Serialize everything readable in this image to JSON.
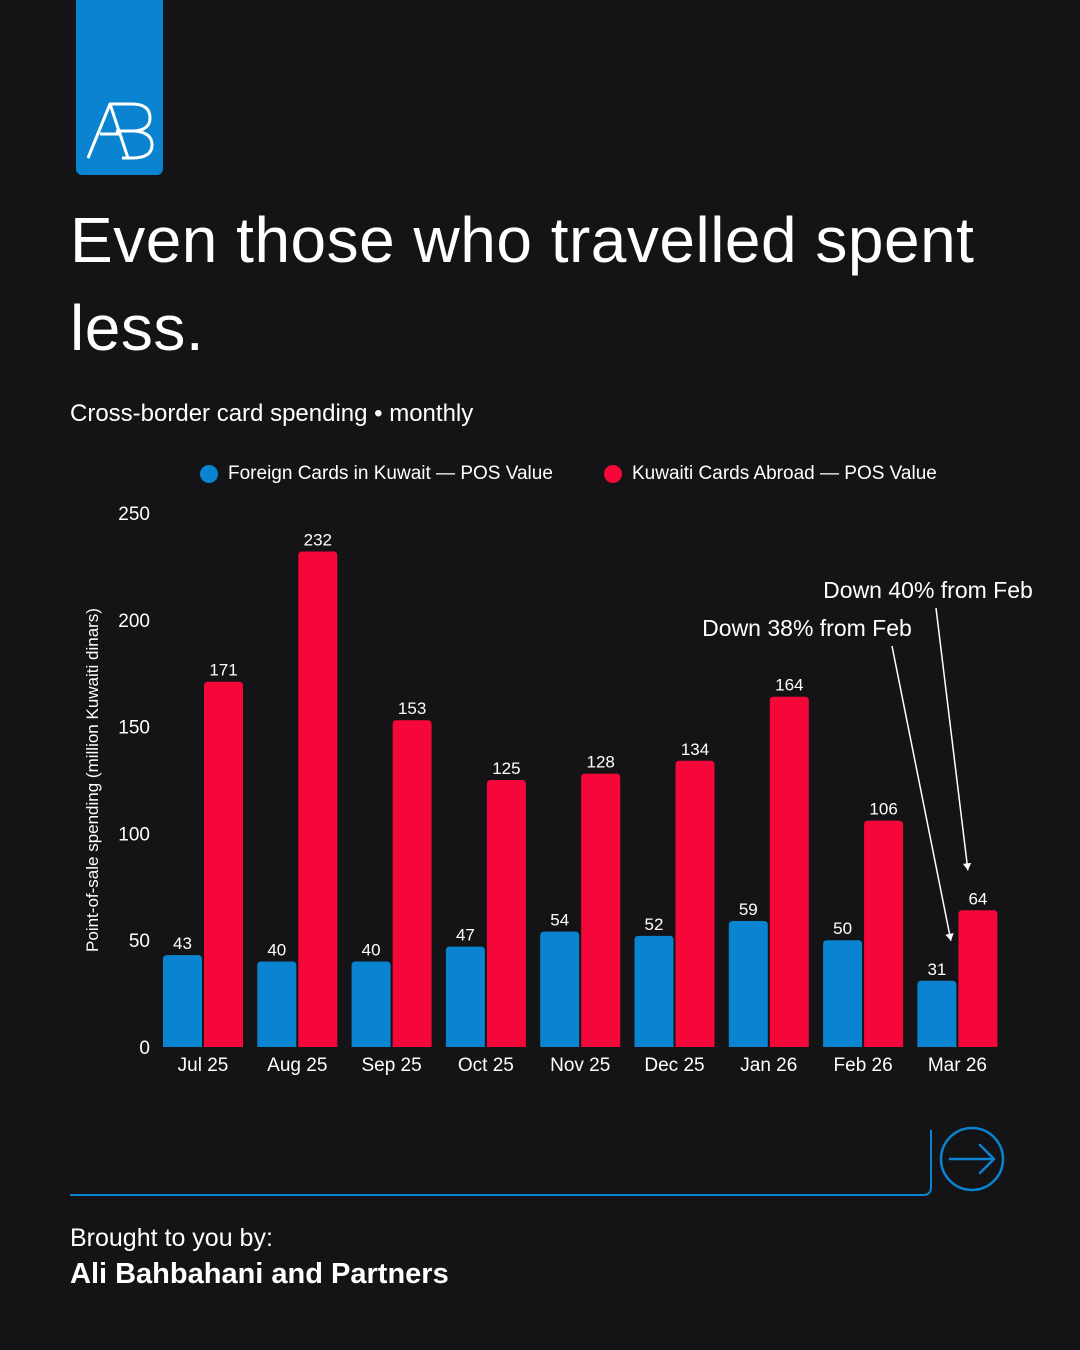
{
  "brand": {
    "logo_name": "ab-monogram-logo",
    "accent": "#0a84d0"
  },
  "headline": "Even those who travelled spent less.",
  "subtitle": "Cross-border card spending • monthly",
  "footer": {
    "label": "Brought to you by:",
    "name": "Ali Bahbahani and Partners",
    "next_icon": "arrow-right-circle-icon"
  },
  "chart_data": {
    "type": "bar",
    "categories": [
      "Jul 25",
      "Aug 25",
      "Sep 25",
      "Oct 25",
      "Nov 25",
      "Dec 25",
      "Jan 26",
      "Feb 26",
      "Mar 26"
    ],
    "series": [
      {
        "name": "Foreign Cards in Kuwait — POS Value",
        "color": "#0a84d0",
        "values": [
          43,
          40,
          40,
          47,
          54,
          52,
          59,
          50,
          31
        ]
      },
      {
        "name": "Kuwaiti Cards Abroad — POS Value",
        "color": "#f5073a",
        "values": [
          171,
          232,
          153,
          125,
          128,
          134,
          164,
          106,
          64
        ]
      }
    ],
    "ylabel": "Point-of-sale spending (million Kuwaiti dinars)",
    "ylim": [
      0,
      250
    ],
    "yticks": [
      0,
      50,
      100,
      150,
      200,
      250
    ],
    "grid": false,
    "legend": "top",
    "annotations": [
      {
        "text": "Down 38% from Feb",
        "category": "Mar 26",
        "series": 0
      },
      {
        "text": "Down 40% from Feb",
        "category": "Mar 26",
        "series": 1
      }
    ]
  }
}
